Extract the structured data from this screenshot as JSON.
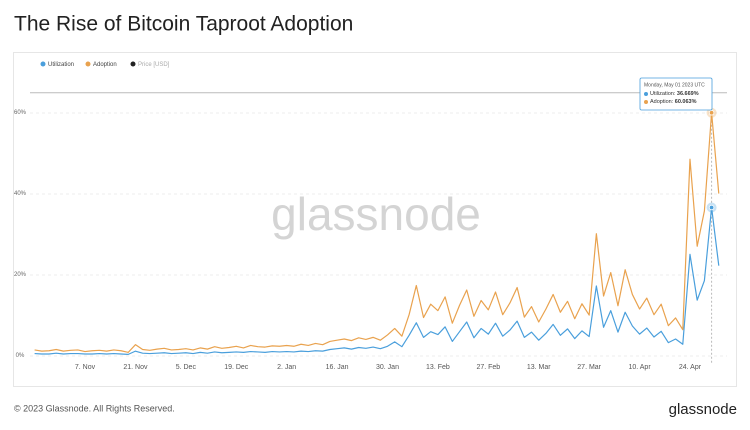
{
  "chart_data": {
    "type": "line",
    "title": "The Rise of Bitcoin Taproot Adoption",
    "categories": [
      null,
      null,
      null,
      null,
      null,
      null,
      null,
      "7. Nov",
      null,
      null,
      null,
      null,
      null,
      null,
      "21. Nov",
      null,
      null,
      null,
      null,
      null,
      null,
      "5. Dec",
      null,
      null,
      null,
      null,
      null,
      null,
      "19. Dec",
      null,
      null,
      null,
      null,
      null,
      null,
      "2. Jan",
      null,
      null,
      null,
      null,
      null,
      null,
      "16. Jan",
      null,
      null,
      null,
      null,
      null,
      null,
      "30. Jan",
      null,
      null,
      null,
      null,
      null,
      null,
      "13. Feb",
      null,
      null,
      null,
      null,
      null,
      null,
      "27. Feb",
      null,
      null,
      null,
      null,
      null,
      null,
      "13. Mar",
      null,
      null,
      null,
      null,
      null,
      null,
      "27. Mar",
      null,
      null,
      null,
      null,
      null,
      null,
      "10. Apr",
      null,
      null,
      null,
      null,
      null,
      null,
      "24. Apr",
      null,
      null,
      null,
      null
    ],
    "series": [
      {
        "name": "Utilization",
        "color": "#4a9fdc",
        "values": [
          0.6,
          0.5,
          0.5,
          0.7,
          0.5,
          0.6,
          0.6,
          0.5,
          0.5,
          0.6,
          0.5,
          0.6,
          0.5,
          0.4,
          1.2,
          0.7,
          0.6,
          0.7,
          0.8,
          0.6,
          0.7,
          0.8,
          0.6,
          0.9,
          0.7,
          1.0,
          0.8,
          0.9,
          1.0,
          0.9,
          1.1,
          1.0,
          0.9,
          1.1,
          1.0,
          1.1,
          1.0,
          1.2,
          1.1,
          1.3,
          1.2,
          1.6,
          1.8,
          2.0,
          1.7,
          2.1,
          1.9,
          2.2,
          1.8,
          2.4,
          3.5,
          2.3,
          5.1,
          8.2,
          4.6,
          6.0,
          5.3,
          7.2,
          3.6,
          6.0,
          8.4,
          4.5,
          6.8,
          5.4,
          8.1,
          4.9,
          6.4,
          8.6,
          4.6,
          5.9,
          3.9,
          5.6,
          7.8,
          5.1,
          6.7,
          4.3,
          6.2,
          4.8,
          17.3,
          7.1,
          11.2,
          5.9,
          10.8,
          7.4,
          5.4,
          6.9,
          4.7,
          6.1,
          3.3,
          4.2,
          2.9,
          25.1,
          13.8,
          18.6,
          36.669,
          22.3
        ]
      },
      {
        "name": "Adoption",
        "color": "#e9a24e",
        "values": [
          1.5,
          1.2,
          1.3,
          1.6,
          1.2,
          1.4,
          1.5,
          1.1,
          1.3,
          1.4,
          1.2,
          1.5,
          1.3,
          0.9,
          2.8,
          1.6,
          1.4,
          1.7,
          1.9,
          1.5,
          1.6,
          1.8,
          1.5,
          2.0,
          1.7,
          2.3,
          1.9,
          2.1,
          2.4,
          2.0,
          2.6,
          2.3,
          2.2,
          2.5,
          2.4,
          2.6,
          2.4,
          2.9,
          2.6,
          3.1,
          2.8,
          3.6,
          3.9,
          4.2,
          3.8,
          4.5,
          4.1,
          4.6,
          3.9,
          5.2,
          6.8,
          4.9,
          10.2,
          17.4,
          9.5,
          12.8,
          11.2,
          14.6,
          8.1,
          12.5,
          16.3,
          9.8,
          13.7,
          11.4,
          15.8,
          10.2,
          13.1,
          16.9,
          9.6,
          12.2,
          8.4,
          11.6,
          15.2,
          10.8,
          13.5,
          9.2,
          12.9,
          10.1,
          30.2,
          14.8,
          20.6,
          12.4,
          21.3,
          15.2,
          11.6,
          14.3,
          10.2,
          12.8,
          7.5,
          9.4,
          6.5,
          48.6,
          27.1,
          35.8,
          60.063,
          40.1
        ]
      }
    ],
    "extra_legend": {
      "name": "Price [USD]",
      "color": "#222222"
    },
    "ylim": [
      -2,
      65
    ],
    "yticks": [
      {
        "value": 0,
        "label": "0%"
      },
      {
        "value": 20,
        "label": "20%"
      },
      {
        "value": 40,
        "label": "40%"
      },
      {
        "value": 60,
        "label": "60%"
      }
    ],
    "grid": true,
    "tooltip": {
      "title": "Monday, May 01 2023 UTC",
      "rows": [
        {
          "label": "Utilization:",
          "value": "36.669%"
        },
        {
          "label": "Adoption:",
          "value": "60.063%"
        }
      ]
    },
    "watermark": "glassnode",
    "footer": {
      "copyright": "© 2023 Glassnode. All Rights Reserved.",
      "logo": "glassnode"
    }
  }
}
